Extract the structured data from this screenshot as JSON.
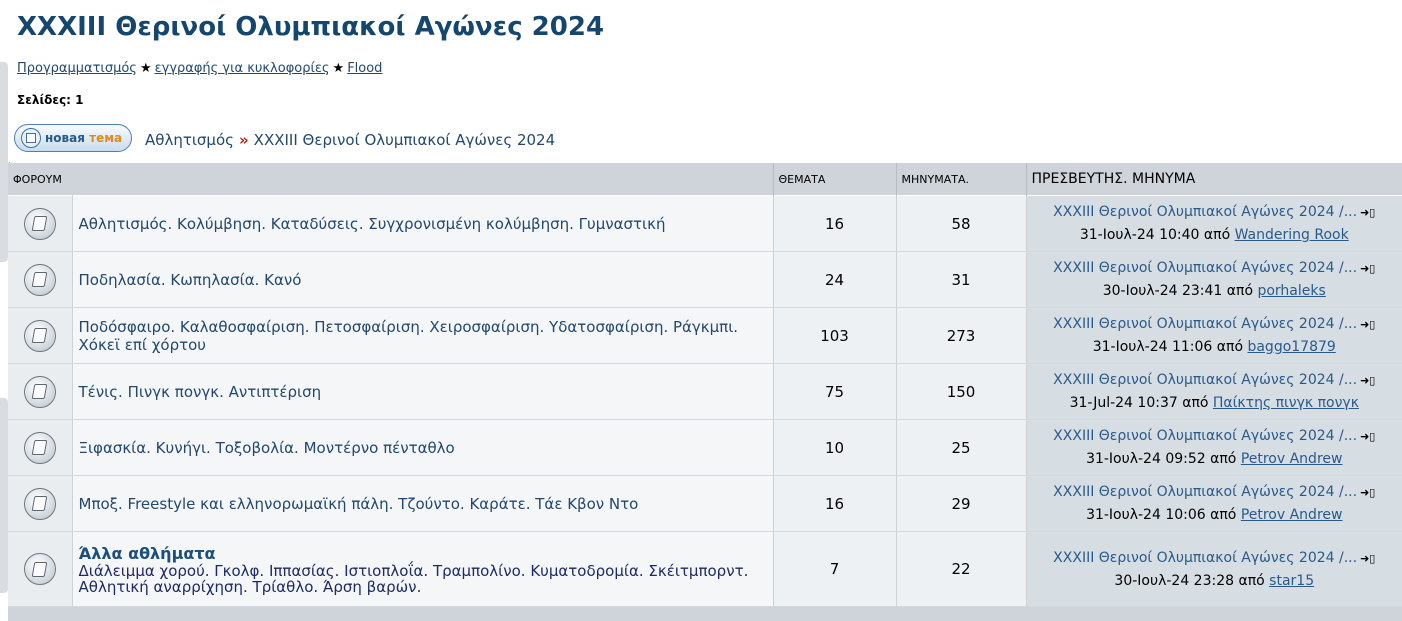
{
  "title": "XXXIII Θερινοί Ολυμπιακοί Αγώνες 2024",
  "nav_links": [
    "Προγραμματισμός",
    "εγγραφής για κυκλοφορίες",
    "Flood"
  ],
  "nav_separator": "★",
  "pages_label": "Σελίδες: 1",
  "new_topic_button": {
    "prefix": "новая",
    "suffix": "тема"
  },
  "breadcrumb": {
    "parent": "Αθλητισμός",
    "separator": "»",
    "current": "XXXIII Θερινοί Ολυμπιακοί Αγώνες 2024"
  },
  "table": {
    "headers": {
      "forum": "ΦΟΡΟΥΜ",
      "topics": "ΘΕΜΑΤΑ",
      "posts": "ΜΗΝΥΜΑΤΑ.",
      "last_post": "ΠΡΕΣΒΕΥΤΗΣ. ΜΗΝΥΜΑ"
    },
    "rows": [
      {
        "name": "Αθλητισμός. Κολύμβηση. Καταδύσεις. Συγχρονισμένη κολύμβηση. Γυμναστική",
        "topics": "16",
        "posts": "58",
        "last_topic": "XXXIII Θερινοί Ολυμπιακοί Αγώνες 2024 /...",
        "last_date": "31-Ιουλ-24 10:40",
        "by": "από",
        "last_user": "Wandering Rook"
      },
      {
        "name": "Ποδηλασία. Κωπηλασία. Κανό",
        "topics": "24",
        "posts": "31",
        "last_topic": "XXXIII Θερινοί Ολυμπιακοί Αγώνες 2024 /...",
        "last_date": "30-Ιουλ-24 23:41",
        "by": "από",
        "last_user": "porhaleks"
      },
      {
        "name": "Ποδόσφαιρο. Καλαθοσφαίριση. Πετοσφαίριση. Χειροσφαίριση. Υδατοσφαίριση. Ράγκμπι. Χόκεϊ επί χόρτου",
        "topics": "103",
        "posts": "273",
        "last_topic": "XXXIII Θερινοί Ολυμπιακοί Αγώνες 2024 /...",
        "last_date": "31-Ιουλ-24 11:06",
        "by": "από",
        "last_user": "baggo17879"
      },
      {
        "name": "Τένις. Πινγκ πονγκ. Αντιπτέριση",
        "topics": "75",
        "posts": "150",
        "last_topic": "XXXIII Θερινοί Ολυμπιακοί Αγώνες 2024 /...",
        "last_date": "31-Jul-24 10:37",
        "by": "από",
        "last_user": "Παίκτης πινγκ πονγκ"
      },
      {
        "name": "Ξιφασκία. Κυνήγι. Τοξοβολία. Μοντέρνο πένταθλο",
        "topics": "10",
        "posts": "25",
        "last_topic": "XXXIII Θερινοί Ολυμπιακοί Αγώνες 2024 /...",
        "last_date": "31-Ιουλ-24 09:52",
        "by": "από",
        "last_user": "Petrov Andrew"
      },
      {
        "name": "Μποξ. Freestyle και ελληνορωμαϊκή πάλη. Τζούντο. Καράτε. Τάε Κβον Ντο",
        "topics": "16",
        "posts": "29",
        "last_topic": "XXXIII Θερινοί Ολυμπιακοί Αγώνες 2024 /...",
        "last_date": "31-Ιουλ-24 10:06",
        "by": "από",
        "last_user": "Petrov Andrew"
      },
      {
        "name": "Άλλα αθλήματα",
        "description": "Διάλειμμα χορού. Γκολφ. Ιππασίας. Ιστιοπλοΐα. Τραμπολίνο. Κυματοδρομία. Σκέιτμπορντ. Αθλητική αναρρίχηση. Τρίαθλο. Άρση βαρών.",
        "topics": "7",
        "posts": "22",
        "last_topic": "XXXIII Θερινοί Ολυμπιακοί Αγώνες 2024 /...",
        "last_date": "30-Ιουλ-24 23:28",
        "by": "από",
        "last_user": "star15"
      }
    ]
  }
}
